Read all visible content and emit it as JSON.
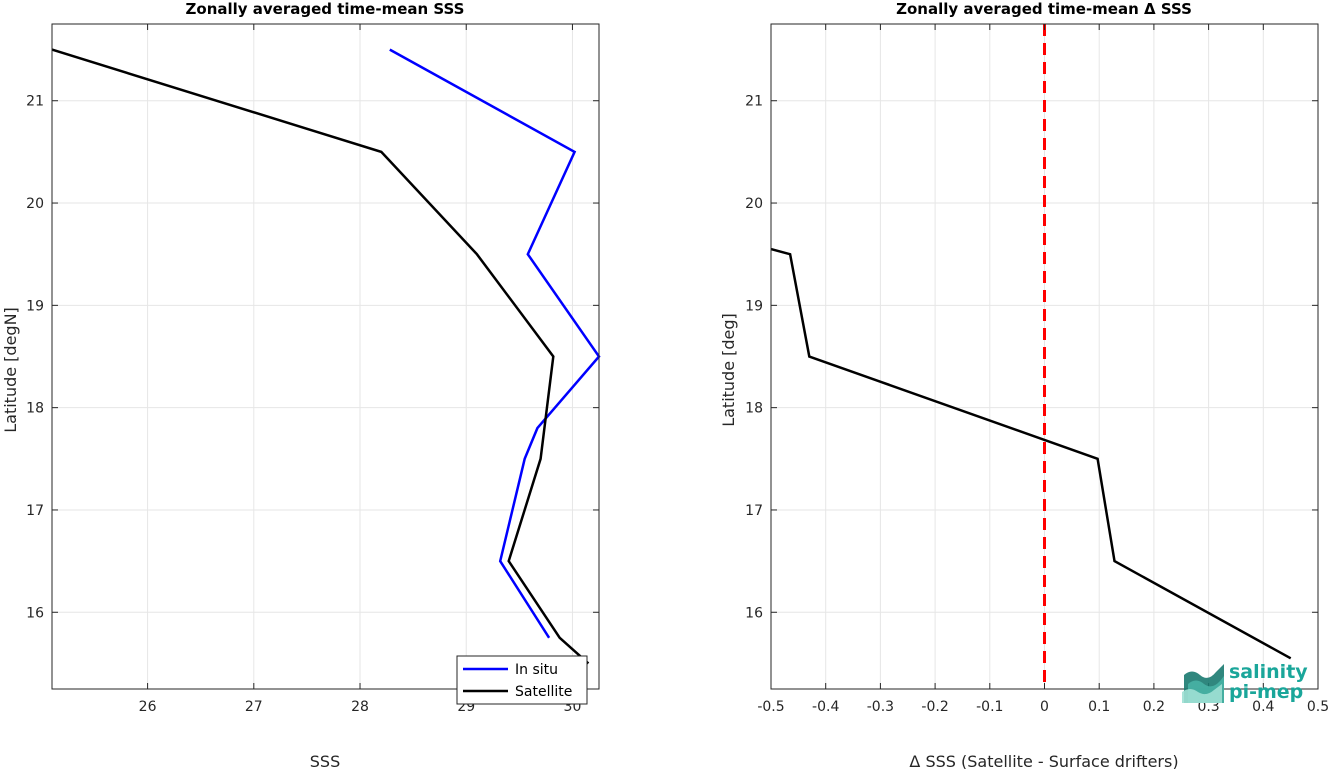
{
  "chart_data": [
    {
      "type": "line",
      "title": "Zonally averaged time-mean SSS",
      "xlabel": "SSS",
      "ylabel": "Latitude [degN]",
      "xlim": [
        25.1,
        30.25
      ],
      "ylim": [
        15.25,
        21.75
      ],
      "xticks": [
        26,
        27,
        28,
        29,
        30
      ],
      "yticks": [
        16,
        17,
        18,
        19,
        20,
        21
      ],
      "grid": true,
      "legend": "bottom-right",
      "series": [
        {
          "name": "In situ",
          "color": "#0000ff",
          "points": [
            [
              28.28,
              21.5
            ],
            [
              30.02,
              20.5
            ],
            [
              29.58,
              19.5
            ],
            [
              30.25,
              18.5
            ],
            [
              29.67,
              17.8
            ],
            [
              29.55,
              17.5
            ],
            [
              29.32,
              16.5
            ],
            [
              29.78,
              15.75
            ]
          ]
        },
        {
          "name": "Satellite",
          "color": "#000000",
          "points": [
            [
              25.1,
              21.5
            ],
            [
              28.2,
              20.5
            ],
            [
              29.1,
              19.5
            ],
            [
              29.82,
              18.5
            ],
            [
              29.7,
              17.5
            ],
            [
              29.4,
              16.5
            ],
            [
              29.88,
              15.75
            ],
            [
              30.15,
              15.5
            ]
          ]
        }
      ]
    },
    {
      "type": "line",
      "title": "Zonally averaged time-mean Δ SSS",
      "xlabel": "Δ SSS (Satellite - Surface drifters)",
      "ylabel": "Latitude [deg]",
      "xlim": [
        -0.5,
        0.5
      ],
      "ylim": [
        15.25,
        21.75
      ],
      "xticks": [
        -0.5,
        -0.4,
        -0.3,
        -0.2,
        -0.1,
        0,
        0.1,
        0.2,
        0.3,
        0.4,
        0.5
      ],
      "yticks": [
        16,
        17,
        18,
        19,
        20,
        21
      ],
      "grid": true,
      "reference_line": {
        "x": 0,
        "color": "#ff0000",
        "style": "dashed"
      },
      "series": [
        {
          "color": "#000000",
          "points": [
            [
              -0.5,
              19.55
            ],
            [
              -0.465,
              19.5
            ],
            [
              -0.43,
              18.5
            ],
            [
              0.097,
              17.5
            ],
            [
              0.128,
              16.5
            ],
            [
              0.45,
              15.55
            ]
          ]
        }
      ]
    }
  ],
  "logo": {
    "line1": "salinity",
    "line2": "pi-mep",
    "color_dark": "#1a7a70",
    "color_light": "#7fd6c8"
  }
}
